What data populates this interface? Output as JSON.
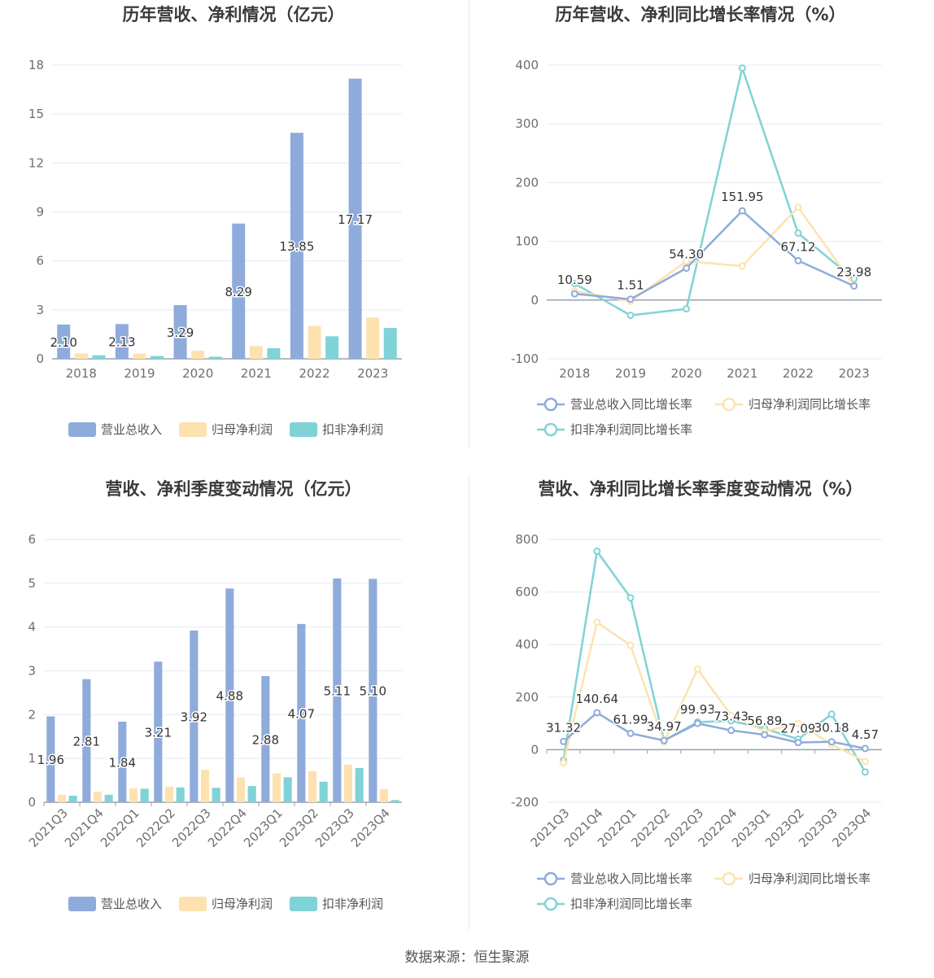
{
  "source": "数据来源：恒生聚源",
  "colors": {
    "revenue": "#8eabdb",
    "net_profit": "#fde2b0",
    "deducted": "#7fd3d6"
  },
  "chart_data": [
    {
      "type": "bar",
      "title": "历年营收、净利情况（亿元）",
      "categories": [
        "2018",
        "2019",
        "2020",
        "2021",
        "2022",
        "2023"
      ],
      "ylim": [
        0,
        18
      ],
      "yticks": [
        "0",
        "3",
        "6",
        "9",
        "12",
        "15",
        "18"
      ],
      "label_series": 0,
      "series": [
        {
          "name": "营业总收入",
          "values": [
            2.1,
            2.13,
            3.29,
            8.29,
            13.85,
            17.17
          ],
          "labels": [
            "2.10",
            "2.13",
            "3.29",
            "8.29",
            "13.85",
            "17.17"
          ]
        },
        {
          "name": "归母净利润",
          "values": [
            0.33,
            0.32,
            0.5,
            0.79,
            2.02,
            2.53
          ]
        },
        {
          "name": "扣非净利润",
          "values": [
            0.22,
            0.17,
            0.13,
            0.65,
            1.38,
            1.89
          ]
        }
      ],
      "grid": true,
      "legend": "bottom"
    },
    {
      "type": "line",
      "title": "历年营收、净利同比增长率情况（%）",
      "categories": [
        "2018",
        "2019",
        "2020",
        "2021",
        "2022",
        "2023"
      ],
      "ylim": [
        -100,
        400
      ],
      "yticks": [
        "-100",
        "0",
        "100",
        "200",
        "300",
        "400"
      ],
      "label_series": 0,
      "series": [
        {
          "name": "营业总收入同比增长率",
          "values": [
            10.59,
            1.51,
            54.3,
            151.95,
            67.12,
            23.98
          ],
          "labels": [
            "10.59",
            "1.51",
            "54.30",
            "151.95",
            "67.12",
            "23.98"
          ]
        },
        {
          "name": "归母净利润同比增长率",
          "values": [
            15,
            -2,
            66,
            58,
            158,
            25
          ]
        },
        {
          "name": "扣非净利润同比增长率",
          "values": [
            28,
            -26,
            -15,
            395,
            114,
            36
          ]
        }
      ],
      "grid": true,
      "legend": "bottom"
    },
    {
      "type": "bar",
      "title": "营收、净利季度变动情况（亿元）",
      "categories": [
        "2021Q3",
        "2021Q4",
        "2022Q1",
        "2022Q2",
        "2022Q3",
        "2022Q4",
        "2023Q1",
        "2023Q2",
        "2023Q3",
        "2023Q4"
      ],
      "ylim": [
        0,
        6
      ],
      "yticks": [
        "0",
        "1",
        "2",
        "3",
        "4",
        "5",
        "6"
      ],
      "label_series": 0,
      "series": [
        {
          "name": "营业总收入",
          "values": [
            1.96,
            2.81,
            1.84,
            3.21,
            3.92,
            4.88,
            2.88,
            4.07,
            5.11,
            5.1
          ],
          "labels": [
            "1.96",
            "2.81",
            "1.84",
            "3.21",
            "3.92",
            "4.88",
            "2.88",
            "4.07",
            "5.11",
            "5.10"
          ]
        },
        {
          "name": "归母净利润",
          "values": [
            0.17,
            0.24,
            0.32,
            0.36,
            0.74,
            0.57,
            0.66,
            0.71,
            0.86,
            0.3
          ]
        },
        {
          "name": "扣非净利润",
          "values": [
            0.15,
            0.17,
            0.31,
            0.34,
            0.33,
            0.37,
            0.57,
            0.47,
            0.78,
            0.05
          ]
        }
      ],
      "grid": true,
      "legend": "bottom"
    },
    {
      "type": "line",
      "title": "营收、净利同比增长率季度变动情况（%）",
      "categories": [
        "2021Q3",
        "2021Q4",
        "2022Q1",
        "2022Q2",
        "2022Q3",
        "2022Q4",
        "2023Q1",
        "2023Q2",
        "2023Q3",
        "2023Q4"
      ],
      "ylim": [
        -200,
        800
      ],
      "yticks": [
        "-200",
        "0",
        "200",
        "400",
        "600",
        "800"
      ],
      "label_series": 0,
      "series": [
        {
          "name": "营业总收入同比增长率",
          "values": [
            31.32,
            140.64,
            61.99,
            34.97,
            99.93,
            73.43,
            56.89,
            27.09,
            30.18,
            4.57
          ],
          "labels": [
            "31.32",
            "140.64",
            "61.99",
            "34.97",
            "99.93",
            "73.43",
            "56.89",
            "27.09",
            "30.18",
            "4.57"
          ]
        },
        {
          "name": "归母净利润同比增长率",
          "values": [
            -50,
            485,
            397,
            30,
            307,
            130,
            70,
            100,
            20,
            -45
          ]
        },
        {
          "name": "扣非净利润同比增长率",
          "values": [
            -40,
            755,
            578,
            35,
            105,
            110,
            80,
            40,
            135,
            -85
          ]
        }
      ],
      "grid": true,
      "legend": "bottom"
    }
  ]
}
